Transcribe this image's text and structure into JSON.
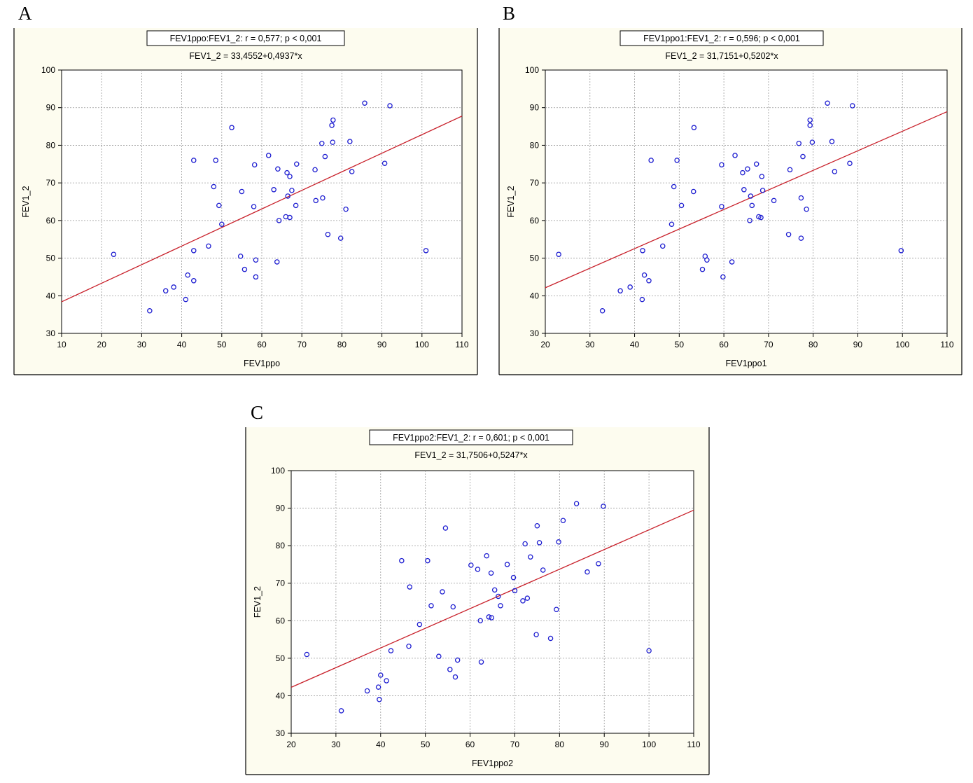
{
  "chart_data": [
    {
      "type": "scatter",
      "panel_label": "A",
      "stats_box": "FEV1ppo:FEV1_2:   r = 0,577; p < 0,001",
      "equation": "FEV1_2 = 33,4552+0,4937*x",
      "xlabel": "FEV1ppo",
      "ylabel": "FEV1_2",
      "xlim": [
        10,
        110
      ],
      "ylim": [
        30,
        100
      ],
      "xticks": [
        10,
        20,
        30,
        40,
        50,
        60,
        70,
        80,
        90,
        100,
        110
      ],
      "yticks": [
        30,
        40,
        50,
        60,
        70,
        80,
        90,
        100
      ],
      "grid": true,
      "fit": {
        "intercept": 33.4552,
        "slope": 0.4937
      },
      "points": [
        [
          23,
          51
        ],
        [
          32,
          36
        ],
        [
          36,
          41.3
        ],
        [
          38,
          42.3
        ],
        [
          41,
          39
        ],
        [
          41.5,
          45.5
        ],
        [
          43,
          44
        ],
        [
          43,
          52
        ],
        [
          43,
          76
        ],
        [
          46.7,
          53.2
        ],
        [
          48,
          69
        ],
        [
          48.5,
          76
        ],
        [
          49.3,
          64
        ],
        [
          50,
          59
        ],
        [
          52.5,
          84.7
        ],
        [
          54.7,
          50.5
        ],
        [
          55,
          67.7
        ],
        [
          55.7,
          47
        ],
        [
          58,
          63.7
        ],
        [
          58.2,
          74.8
        ],
        [
          58.5,
          49.5
        ],
        [
          58.5,
          45
        ],
        [
          61.7,
          77.3
        ],
        [
          63,
          68.2
        ],
        [
          63.8,
          49
        ],
        [
          64,
          73.7
        ],
        [
          64.3,
          60
        ],
        [
          66,
          61
        ],
        [
          66.3,
          72.7
        ],
        [
          66.5,
          66.5
        ],
        [
          67,
          71.7
        ],
        [
          67,
          60.8
        ],
        [
          67.5,
          68
        ],
        [
          68.5,
          64
        ],
        [
          68.7,
          75
        ],
        [
          73.3,
          73.5
        ],
        [
          73.5,
          65.3
        ],
        [
          75,
          80.5
        ],
        [
          75.2,
          66
        ],
        [
          75.8,
          77
        ],
        [
          76.5,
          56.3
        ],
        [
          77.5,
          85.3
        ],
        [
          77.7,
          80.8
        ],
        [
          77.8,
          86.7
        ],
        [
          79.7,
          55.3
        ],
        [
          81,
          63
        ],
        [
          82,
          81
        ],
        [
          82.5,
          73
        ],
        [
          85.7,
          91.2
        ],
        [
          90.7,
          75.2
        ],
        [
          92,
          90.5
        ],
        [
          101,
          52
        ]
      ]
    },
    {
      "type": "scatter",
      "panel_label": "B",
      "stats_box": "FEV1ppo1:FEV1_2:   r = 0,596; p < 0,001",
      "equation": "FEV1_2 = 31,7151+0,5202*x",
      "xlabel": "FEV1ppo1",
      "ylabel": "FEV1_2",
      "xlim": [
        20,
        110
      ],
      "ylim": [
        30,
        100
      ],
      "xticks": [
        20,
        30,
        40,
        50,
        60,
        70,
        80,
        90,
        100,
        110
      ],
      "yticks": [
        30,
        40,
        50,
        60,
        70,
        80,
        90,
        100
      ],
      "grid": true,
      "fit": {
        "intercept": 31.7151,
        "slope": 0.5202
      },
      "points": [
        [
          23,
          51
        ],
        [
          32.8,
          36
        ],
        [
          36.8,
          41.3
        ],
        [
          39,
          42.3
        ],
        [
          41.7,
          39
        ],
        [
          41.8,
          52
        ],
        [
          42.2,
          45.5
        ],
        [
          43.2,
          44
        ],
        [
          43.7,
          76
        ],
        [
          46.3,
          53.2
        ],
        [
          48.3,
          59
        ],
        [
          48.8,
          69
        ],
        [
          49.5,
          76
        ],
        [
          50.5,
          64
        ],
        [
          53.2,
          67.7
        ],
        [
          53.3,
          84.7
        ],
        [
          55.2,
          47
        ],
        [
          55.8,
          50.5
        ],
        [
          56.2,
          49.5
        ],
        [
          59.5,
          63.7
        ],
        [
          59.5,
          74.8
        ],
        [
          59.8,
          45
        ],
        [
          61.8,
          49
        ],
        [
          62.5,
          77.3
        ],
        [
          64.2,
          72.7
        ],
        [
          64.5,
          68.2
        ],
        [
          65.3,
          73.7
        ],
        [
          65.8,
          60
        ],
        [
          66,
          66.5
        ],
        [
          66.3,
          64
        ],
        [
          67.3,
          75
        ],
        [
          67.8,
          61
        ],
        [
          68.3,
          60.8
        ],
        [
          68.5,
          71.7
        ],
        [
          68.7,
          68
        ],
        [
          71.2,
          65.3
        ],
        [
          74.5,
          56.3
        ],
        [
          74.8,
          73.5
        ],
        [
          76.8,
          80.5
        ],
        [
          77.3,
          55.3
        ],
        [
          77.3,
          66
        ],
        [
          77.7,
          77
        ],
        [
          78.5,
          63
        ],
        [
          79.3,
          85.3
        ],
        [
          79.3,
          86.7
        ],
        [
          79.8,
          80.8
        ],
        [
          83.2,
          91.2
        ],
        [
          84.2,
          81
        ],
        [
          84.8,
          73
        ],
        [
          88.2,
          75.2
        ],
        [
          88.8,
          90.5
        ],
        [
          99.7,
          52
        ]
      ]
    },
    {
      "type": "scatter",
      "panel_label": "C",
      "stats_box": "FEV1ppo2:FEV1_2:   r = 0,601; p < 0,001",
      "equation": "FEV1_2 = 31,7506+0,5247*x",
      "xlabel": "FEV1ppo2",
      "ylabel": "FEV1_2",
      "xlim": [
        20,
        110
      ],
      "ylim": [
        30,
        100
      ],
      "xticks": [
        20,
        30,
        40,
        50,
        60,
        70,
        80,
        90,
        100,
        110
      ],
      "yticks": [
        30,
        40,
        50,
        60,
        70,
        80,
        90,
        100
      ],
      "grid": true,
      "fit": {
        "intercept": 31.7506,
        "slope": 0.5247
      },
      "points": [
        [
          23.5,
          51
        ],
        [
          31.2,
          36
        ],
        [
          37,
          41.3
        ],
        [
          39.5,
          42.3
        ],
        [
          39.7,
          39
        ],
        [
          40,
          45.5
        ],
        [
          41.3,
          44
        ],
        [
          42.3,
          52
        ],
        [
          44.7,
          76
        ],
        [
          46.3,
          53.2
        ],
        [
          46.5,
          69
        ],
        [
          48.7,
          59
        ],
        [
          50.5,
          76
        ],
        [
          51.3,
          64
        ],
        [
          53,
          50.5
        ],
        [
          53.8,
          67.7
        ],
        [
          54.5,
          84.7
        ],
        [
          55.5,
          47
        ],
        [
          56.2,
          63.7
        ],
        [
          56.7,
          45
        ],
        [
          57.2,
          49.5
        ],
        [
          60.2,
          74.8
        ],
        [
          61.7,
          73.7
        ],
        [
          62.3,
          60
        ],
        [
          62.5,
          49
        ],
        [
          63.7,
          77.3
        ],
        [
          64.2,
          61
        ],
        [
          64.7,
          72.7
        ],
        [
          64.8,
          60.8
        ],
        [
          65.5,
          68.2
        ],
        [
          66.3,
          66.5
        ],
        [
          66.8,
          64
        ],
        [
          68.3,
          75
        ],
        [
          69.7,
          71.5
        ],
        [
          70,
          68
        ],
        [
          71.8,
          65.3
        ],
        [
          72.3,
          80.5
        ],
        [
          72.8,
          66
        ],
        [
          73.5,
          77
        ],
        [
          74.8,
          56.3
        ],
        [
          75,
          85.3
        ],
        [
          75.5,
          80.8
        ],
        [
          76.3,
          73.5
        ],
        [
          78,
          55.3
        ],
        [
          79.3,
          63
        ],
        [
          79.8,
          81
        ],
        [
          80.8,
          86.7
        ],
        [
          83.8,
          91.2
        ],
        [
          86.2,
          73
        ],
        [
          88.7,
          75.2
        ],
        [
          89.8,
          90.5
        ],
        [
          100,
          52
        ]
      ]
    }
  ]
}
